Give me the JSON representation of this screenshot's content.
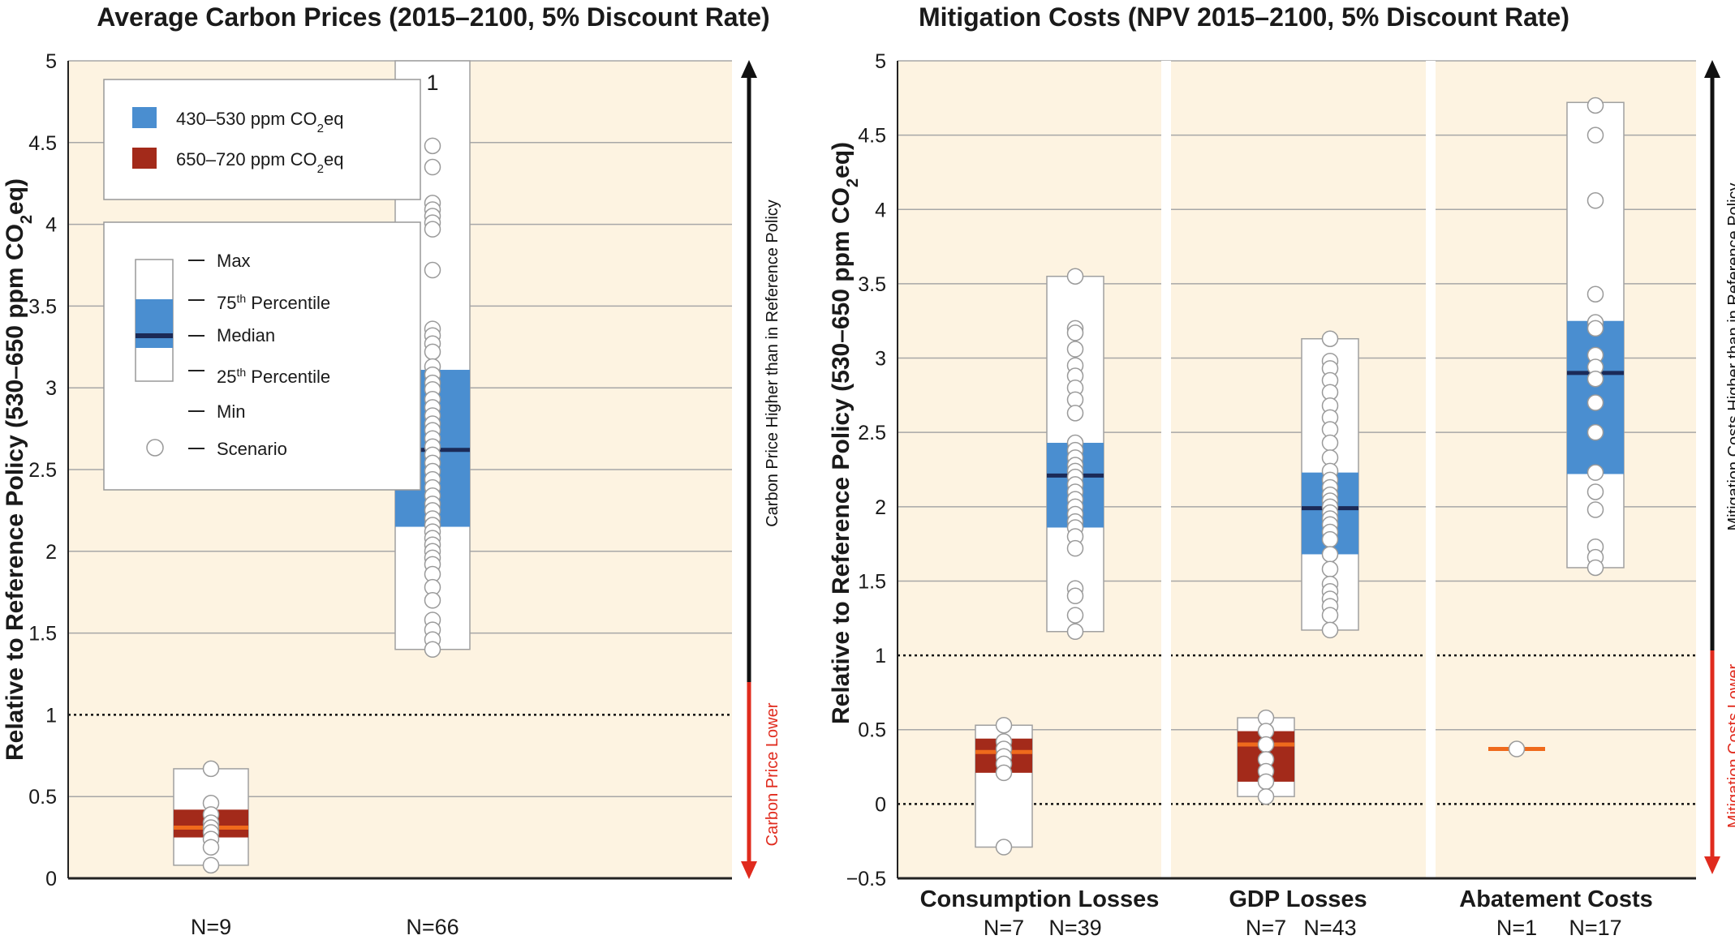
{
  "colors": {
    "background": "#fdf3e1",
    "band430": "#4a8ed0",
    "band650": "#a32a1a",
    "median430": "#1b2a57",
    "median650": "#ef6a1c",
    "arrowUp": "#111111",
    "arrowDown": "#e02b1e",
    "grid": "#a7a7a7"
  },
  "chart_data": [
    {
      "type": "box",
      "title": "Average Carbon Prices (2015–2100, 5% Discount Rate)",
      "ylabel": "Relative to Reference Policy (530–650 ppm CO2eq)",
      "ylabel_main": "Relative to Reference Policy (530–650 ppm CO",
      "ylabel_sub": "2",
      "ylabel_end": "eq)",
      "ylim": [
        0,
        5
      ],
      "yticks": [
        "0",
        "0.5",
        "1",
        "1.5",
        "2",
        "2.5",
        "3",
        "3.5",
        "4",
        "4.5",
        "5"
      ],
      "reference_line": 1,
      "arrow_up_label": "Carbon Price Higher than in Reference Policy",
      "arrow_down_label": "Carbon Price Lower",
      "groups": [
        {
          "label": "",
          "boxes": [
            {
              "scenario": "650–720 ppm CO2eq",
              "n_label": "N=9",
              "min": 0.08,
              "q1": 0.25,
              "median": 0.31,
              "q3": 0.42,
              "max": 0.67,
              "points": [
                0.67,
                0.46,
                0.39,
                0.34,
                0.31,
                0.28,
                0.24,
                0.19,
                0.08
              ]
            },
            {
              "scenario": "430–530 ppm CO2eq",
              "n_label": "N=66",
              "min": 1.4,
              "q1": 2.15,
              "median": 2.62,
              "q3": 3.11,
              "max": 5.0,
              "outlier_label": "1",
              "points": [
                4.48,
                4.35,
                4.13,
                4.09,
                4.05,
                4.01,
                3.97,
                3.72,
                3.36,
                3.32,
                3.27,
                3.22,
                3.13,
                3.08,
                3.03,
                2.99,
                2.93,
                2.88,
                2.83,
                2.78,
                2.74,
                2.69,
                2.64,
                2.59,
                2.54,
                2.49,
                2.44,
                2.39,
                2.34,
                2.29,
                2.25,
                2.2,
                2.16,
                2.12,
                2.08,
                2.04,
                2.0,
                1.96,
                1.92,
                1.86,
                1.78,
                1.7,
                1.58,
                1.52,
                1.46,
                1.4
              ]
            }
          ]
        }
      ]
    },
    {
      "type": "box",
      "title": "Mitigation Costs (NPV 2015–2100, 5% Discount Rate)",
      "ylabel": "Relative to Reference Policy (530–650 ppm CO2eq)",
      "ylabel_main": "Relative to Reference Policy (530–650 ppm CO",
      "ylabel_sub": "2",
      "ylabel_end": "eq)",
      "ylim": [
        -0.5,
        5
      ],
      "yticks": [
        "−0.5",
        "0",
        "0.5",
        "1",
        "1.5",
        "2",
        "2.5",
        "3",
        "3.5",
        "4",
        "4.5",
        "5"
      ],
      "reference_line": 1,
      "zero_line": 0,
      "arrow_up_label": "Mitigation Costs Higher than in Reference Policy",
      "arrow_down_label": "Mitigation Costs Lower",
      "groups": [
        {
          "label": "Consumption Losses",
          "boxes": [
            {
              "scenario": "650–720 ppm CO2eq",
              "n_label": "N=7",
              "min": -0.29,
              "q1": 0.21,
              "median": 0.35,
              "q3": 0.44,
              "max": 0.53,
              "points": [
                0.53,
                0.42,
                0.37,
                0.32,
                0.27,
                0.21,
                -0.29
              ]
            },
            {
              "scenario": "430–530 ppm CO2eq",
              "n_label": "N=39",
              "min": 1.16,
              "q1": 1.86,
              "median": 2.21,
              "q3": 2.43,
              "max": 3.55,
              "points": [
                3.55,
                3.2,
                3.17,
                3.06,
                2.95,
                2.88,
                2.8,
                2.72,
                2.63,
                2.43,
                2.38,
                2.33,
                2.28,
                2.24,
                2.2,
                2.15,
                2.1,
                2.05,
                2.0,
                1.95,
                1.9,
                1.86,
                1.8,
                1.72,
                1.45,
                1.4,
                1.27,
                1.16
              ]
            }
          ]
        },
        {
          "label": "GDP Losses",
          "boxes": [
            {
              "scenario": "650–720 ppm CO2eq",
              "n_label": "N=7",
              "min": 0.05,
              "q1": 0.15,
              "median": 0.4,
              "q3": 0.49,
              "max": 0.58,
              "points": [
                0.58,
                0.49,
                0.4,
                0.3,
                0.22,
                0.15,
                0.05
              ]
            },
            {
              "scenario": "430–530 ppm CO2eq",
              "n_label": "N=43",
              "min": 1.17,
              "q1": 1.68,
              "median": 1.99,
              "q3": 2.23,
              "max": 3.13,
              "points": [
                3.13,
                2.98,
                2.93,
                2.85,
                2.77,
                2.68,
                2.6,
                2.52,
                2.43,
                2.33,
                2.24,
                2.18,
                2.13,
                2.08,
                2.04,
                2.0,
                1.96,
                1.92,
                1.88,
                1.83,
                1.78,
                1.68,
                1.58,
                1.48,
                1.43,
                1.38,
                1.33,
                1.27,
                1.17
              ]
            }
          ]
        },
        {
          "label": "Abatement Costs",
          "boxes": [
            {
              "scenario": "650–720 ppm CO2eq",
              "n_label": "N=1",
              "min": 0.37,
              "q1": 0.37,
              "median": 0.37,
              "q3": 0.37,
              "max": 0.37,
              "points": [
                0.37
              ]
            },
            {
              "scenario": "430–530 ppm CO2eq",
              "n_label": "N=17",
              "min": 1.59,
              "q1": 2.22,
              "median": 2.9,
              "q3": 3.25,
              "max": 4.72,
              "points": [
                4.7,
                4.5,
                4.06,
                3.43,
                3.24,
                3.2,
                3.02,
                2.94,
                2.86,
                2.7,
                2.5,
                2.23,
                2.1,
                1.98,
                1.73,
                1.66,
                1.59
              ]
            }
          ]
        }
      ]
    }
  ],
  "legend_scenarios": {
    "items": [
      {
        "main": "430–530 ppm CO",
        "sub": "2",
        "end": "eq",
        "color": "#4a8ed0"
      },
      {
        "main": "650–720 ppm CO",
        "sub": "2",
        "end": "eq",
        "color": "#a32a1a"
      }
    ]
  },
  "legend_box": {
    "max": "Max",
    "p75_num": "75",
    "p75_sup": "th",
    "p75_end": " Percentile",
    "median": "Median",
    "p25_num": "25",
    "p25_sup": "th",
    "p25_end": " Percentile",
    "min": "Min",
    "scenario": "Scenario"
  }
}
